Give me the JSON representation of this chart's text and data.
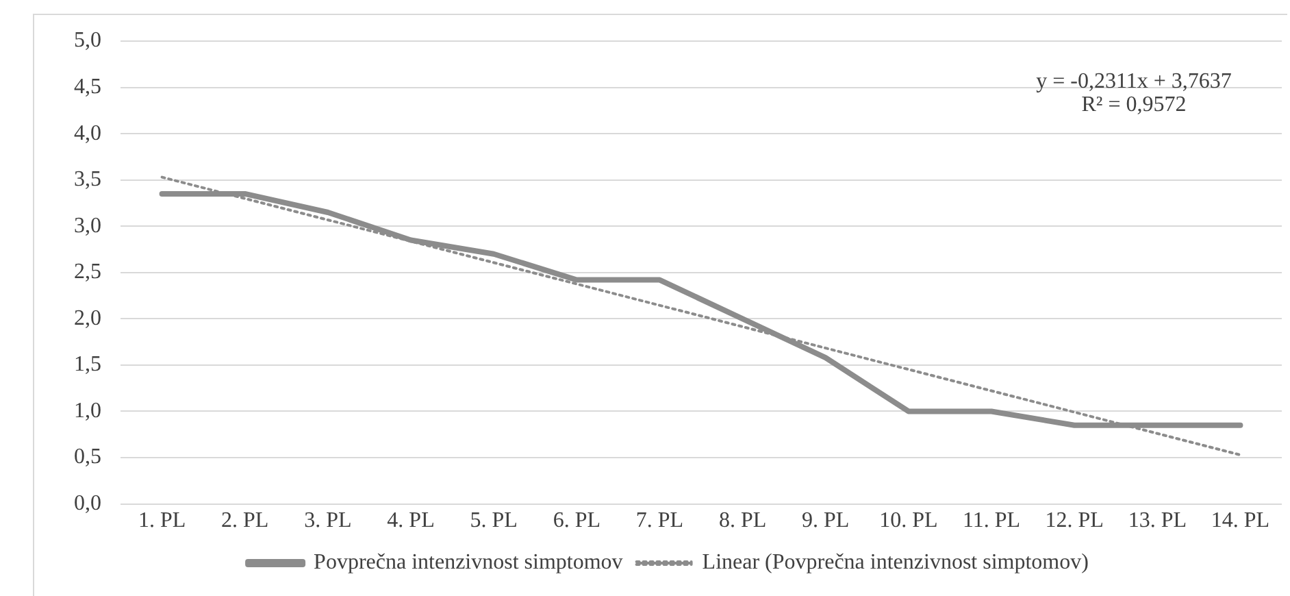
{
  "chart_data": {
    "type": "line",
    "categories": [
      "1. PL",
      "2. PL",
      "3. PL",
      "4. PL",
      "5. PL",
      "6. PL",
      "7. PL",
      "8. PL",
      "9. PL",
      "10. PL",
      "11. PL",
      "12. PL",
      "13. PL",
      "14. PL"
    ],
    "series": [
      {
        "name": "Povprečna intenzivnost simptomov",
        "color": "#8c8c8c",
        "values": [
          3.35,
          3.35,
          3.15,
          2.85,
          2.7,
          2.42,
          2.42,
          2.0,
          1.58,
          1.0,
          1.0,
          0.85,
          0.85,
          0.85
        ],
        "line_style": "solid"
      },
      {
        "name": "Linear (Povprečna intenzivnost simptomov)",
        "color": "#8c8c8c",
        "x": [
          "1. PL",
          "14. PL"
        ],
        "values": [
          3.53,
          0.53
        ],
        "line_style": "dotted"
      }
    ],
    "ylim": [
      0,
      5
    ],
    "yticks": [
      {
        "value": 0,
        "label": "0,0"
      },
      {
        "value": 0.5,
        "label": "0,5"
      },
      {
        "value": 1,
        "label": "1,0"
      },
      {
        "value": 1.5,
        "label": "1,5"
      },
      {
        "value": 2,
        "label": "2,0"
      },
      {
        "value": 2.5,
        "label": "2,5"
      },
      {
        "value": 3,
        "label": "3,0"
      },
      {
        "value": 3.5,
        "label": "3,5"
      },
      {
        "value": 4,
        "label": "4,0"
      },
      {
        "value": 4.5,
        "label": "4,5"
      },
      {
        "value": 5,
        "label": "5,0"
      }
    ],
    "grid": "y",
    "legend": "bottom",
    "marker": "none",
    "annotations": [
      "y = -0,2311x + 3,7637",
      "R² = 0,9572"
    ]
  }
}
